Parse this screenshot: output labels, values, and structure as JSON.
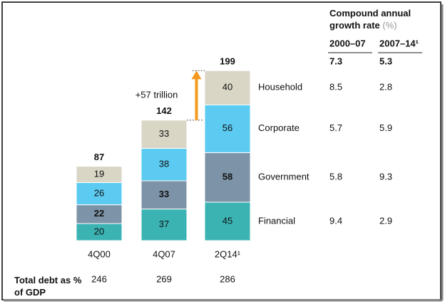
{
  "chart_data": {
    "type": "stacked_bar",
    "categories": [
      "4Q00",
      "4Q07",
      "2Q14¹"
    ],
    "series": [
      {
        "name": "Financial",
        "color": "#3bb3b3",
        "label_color": "#111",
        "values": [
          20,
          37,
          45
        ],
        "cagr": [
          9.4,
          2.9
        ]
      },
      {
        "name": "Government",
        "color": "#7d94a8",
        "label_color": "#fff",
        "values": [
          22,
          33,
          58
        ],
        "cagr": [
          5.8,
          9.3
        ]
      },
      {
        "name": "Corporate",
        "color": "#5ccbf2",
        "label_color": "#111",
        "values": [
          26,
          38,
          56
        ],
        "cagr": [
          5.7,
          5.9
        ]
      },
      {
        "name": "Household",
        "color": "#d9d6c5",
        "label_color": "#111",
        "values": [
          19,
          33,
          40
        ],
        "cagr": [
          8.5,
          2.8
        ]
      }
    ],
    "totals": [
      87,
      142,
      199
    ],
    "annotation": "+57 trillion",
    "annotation_color": "#f39a1e",
    "total_debt": {
      "label": "Total debt as % of GDP",
      "values": [
        246,
        269,
        286
      ],
      "color": "#f39a1e"
    },
    "cagr": {
      "title": "Compound annual growth rate",
      "unit": "(%)",
      "columns": [
        "2000–07",
        "2007–14¹"
      ],
      "totals": [
        7.3,
        5.3
      ]
    }
  }
}
